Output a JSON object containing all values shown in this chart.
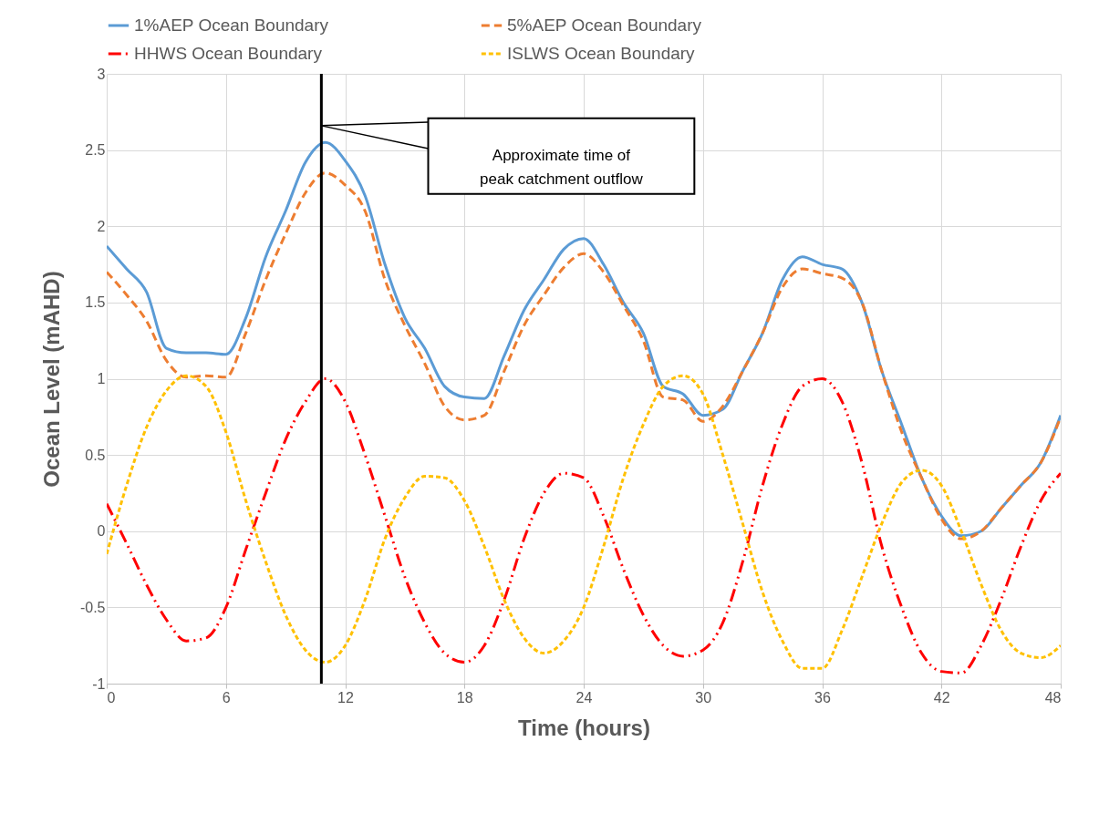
{
  "chart_data": {
    "type": "line",
    "xlabel": "Time (hours)",
    "ylabel": "Ocean Level (mAHD)",
    "x": [
      0,
      1,
      2,
      3,
      4,
      5,
      6,
      7,
      8,
      9,
      10,
      11,
      12,
      13,
      14,
      15,
      16,
      17,
      18,
      19,
      20,
      21,
      22,
      23,
      24,
      25,
      26,
      27,
      28,
      29,
      30,
      31,
      32,
      33,
      34,
      35,
      36,
      37,
      38,
      39,
      40,
      41,
      42,
      43,
      44,
      45,
      46,
      47,
      48
    ],
    "series": [
      {
        "name": "1%AEP Ocean Boundary",
        "color": "#5b9bd5",
        "line_style": "solid",
        "values": [
          1.87,
          1.72,
          1.57,
          1.2,
          1.17,
          1.17,
          1.16,
          1.4,
          1.8,
          2.1,
          2.42,
          2.55,
          2.43,
          2.2,
          1.75,
          1.4,
          1.2,
          0.95,
          0.88,
          0.87,
          1.15,
          1.45,
          1.65,
          1.85,
          1.92,
          1.75,
          1.5,
          1.3,
          0.95,
          0.9,
          0.76,
          0.8,
          1.05,
          1.3,
          1.65,
          1.8,
          1.75,
          1.72,
          1.5,
          1.05,
          0.7,
          0.35,
          0.1,
          -0.03,
          0.0,
          0.15,
          0.3,
          0.45,
          0.76
        ]
      },
      {
        "name": "5%AEP Ocean Boundary",
        "color": "#ed7d31",
        "line_style": "dashed",
        "values": [
          1.7,
          1.55,
          1.38,
          1.12,
          1.01,
          1.02,
          1.01,
          1.3,
          1.65,
          1.95,
          2.22,
          2.35,
          2.27,
          2.1,
          1.65,
          1.35,
          1.1,
          0.82,
          0.73,
          0.76,
          1.05,
          1.35,
          1.55,
          1.73,
          1.82,
          1.7,
          1.48,
          1.25,
          0.88,
          0.86,
          0.72,
          0.82,
          1.05,
          1.3,
          1.6,
          1.72,
          1.69,
          1.66,
          1.5,
          1.05,
          0.65,
          0.35,
          0.08,
          -0.05,
          0.0,
          0.15,
          0.3,
          0.45,
          0.75
        ]
      },
      {
        "name": "HHWS Ocean Boundary",
        "color": "#ff0000",
        "line_style": "dashdot",
        "values": [
          0.18,
          -0.08,
          -0.35,
          -0.58,
          -0.72,
          -0.7,
          -0.5,
          -0.12,
          0.25,
          0.6,
          0.85,
          1.0,
          0.85,
          0.5,
          0.1,
          -0.3,
          -0.6,
          -0.8,
          -0.86,
          -0.75,
          -0.45,
          -0.05,
          0.25,
          0.38,
          0.35,
          0.1,
          -0.25,
          -0.55,
          -0.75,
          -0.82,
          -0.78,
          -0.6,
          -0.2,
          0.3,
          0.7,
          0.95,
          1.0,
          0.85,
          0.45,
          -0.1,
          -0.5,
          -0.8,
          -0.92,
          -0.93,
          -0.75,
          -0.45,
          -0.1,
          0.2,
          0.38
        ]
      },
      {
        "name": "ISLWS Ocean Boundary",
        "color": "#ffc000",
        "line_style": "dotted",
        "values": [
          -0.15,
          0.3,
          0.68,
          0.92,
          1.02,
          0.95,
          0.65,
          0.2,
          -0.2,
          -0.55,
          -0.78,
          -0.86,
          -0.75,
          -0.45,
          -0.05,
          0.22,
          0.36,
          0.35,
          0.2,
          -0.1,
          -0.45,
          -0.7,
          -0.8,
          -0.72,
          -0.5,
          -0.1,
          0.35,
          0.7,
          0.95,
          1.02,
          0.9,
          0.5,
          0.05,
          -0.4,
          -0.72,
          -0.9,
          -0.9,
          -0.65,
          -0.3,
          0.05,
          0.32,
          0.4,
          0.3,
          0.0,
          -0.35,
          -0.65,
          -0.8,
          -0.83,
          -0.75
        ]
      }
    ],
    "xlim": [
      0,
      48
    ],
    "xticks": [
      0,
      6,
      12,
      18,
      24,
      30,
      36,
      42,
      48
    ],
    "ylim": [
      -1,
      3
    ],
    "yticks": [
      -1,
      -0.5,
      0,
      0.5,
      1,
      1.5,
      2,
      2.5,
      3
    ],
    "grid": true,
    "legend": "top",
    "ref_lines": [
      {
        "axis": "x",
        "value": 10.8,
        "color": "#000000"
      }
    ],
    "annotations": [
      "Approximate time of peak catchment outflow"
    ]
  }
}
